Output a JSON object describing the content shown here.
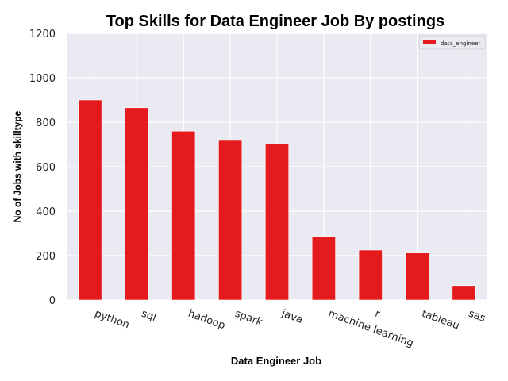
{
  "chart_data": {
    "type": "bar",
    "title": "Top Skills for Data Engineer Job By postings",
    "xlabel": "Data Engineer Job",
    "ylabel": "No of Jobs with skilltype",
    "ylim": [
      0,
      1200
    ],
    "yticks": [
      0,
      200,
      400,
      600,
      800,
      1000,
      1200
    ],
    "categories": [
      "python",
      "sql",
      "hadoop",
      "spark",
      "java",
      "machine learning",
      "r",
      "tableau",
      "sas"
    ],
    "series": [
      {
        "name": "data_engineer",
        "color": "#e41a1c",
        "values": [
          900,
          865,
          760,
          718,
          703,
          287,
          225,
          212,
          65
        ]
      }
    ],
    "grid": true,
    "legend_position": "top-right",
    "background_color": "#eaeaf2"
  }
}
